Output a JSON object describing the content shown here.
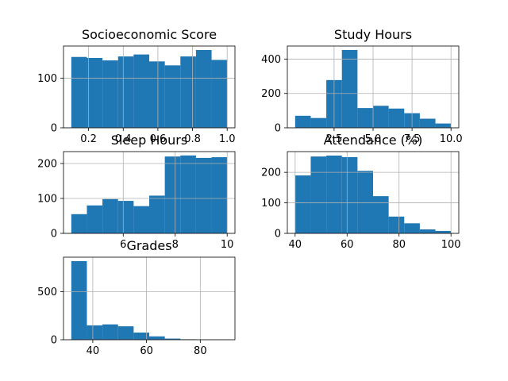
{
  "chart_data": [
    {
      "type": "bar",
      "title": "Socioeconomic Score",
      "bin_edges": [
        0.1,
        0.19,
        0.28,
        0.37,
        0.46,
        0.55,
        0.64,
        0.73,
        0.82,
        0.91,
        1.0
      ],
      "counts": [
        143,
        141,
        136,
        144,
        148,
        134,
        126,
        144,
        157,
        137
      ],
      "xlim": [
        0.055,
        1.045
      ],
      "ylim": [
        0,
        165
      ],
      "xticks": [
        0.2,
        0.4,
        0.6,
        0.8,
        1.0
      ],
      "xtick_labels": [
        "0.2",
        "0.4",
        "0.6",
        "0.8",
        "1.0"
      ],
      "yticks": [
        0,
        100
      ],
      "ytick_labels": [
        "0",
        "100"
      ],
      "color": "#1f77b4",
      "grid": true
    },
    {
      "type": "bar",
      "title": "Study Hours",
      "bin_edges": [
        0.0,
        1.0,
        2.0,
        3.0,
        4.0,
        5.0,
        6.0,
        7.0,
        8.0,
        9.0,
        10.0
      ],
      "counts": [
        70,
        57,
        278,
        453,
        115,
        128,
        112,
        85,
        53,
        25
      ],
      "xlim": [
        -0.5,
        10.5
      ],
      "ylim": [
        0,
        476
      ],
      "xticks": [
        2.5,
        5.0,
        7.5,
        10.0
      ],
      "xtick_labels": [
        "2.5",
        "5.0",
        "7.5",
        "10.0"
      ],
      "yticks": [
        0,
        200,
        400
      ],
      "ytick_labels": [
        "0",
        "200",
        "400"
      ],
      "color": "#1f77b4",
      "grid": true
    },
    {
      "type": "bar",
      "title": "Sleep Hours",
      "bin_edges": [
        4.0,
        4.6,
        5.2,
        5.8,
        6.4,
        7.0,
        7.6,
        8.2,
        8.8,
        9.4,
        10.0
      ],
      "counts": [
        55,
        80,
        98,
        93,
        78,
        108,
        220,
        223,
        216,
        218
      ],
      "xlim": [
        3.7,
        10.3
      ],
      "ylim": [
        0,
        234
      ],
      "xticks": [
        6,
        8,
        10
      ],
      "xtick_labels": [
        "6",
        "8",
        "10"
      ],
      "yticks": [
        0,
        100,
        200
      ],
      "ytick_labels": [
        "0",
        "100",
        "200"
      ],
      "color": "#1f77b4",
      "grid": true
    },
    {
      "type": "bar",
      "title": "Attendance (%)",
      "bin_edges": [
        40,
        46,
        52,
        58,
        64,
        70,
        76,
        82,
        88,
        94,
        100
      ],
      "counts": [
        190,
        252,
        255,
        250,
        205,
        122,
        55,
        33,
        13,
        8
      ],
      "xlim": [
        37,
        103
      ],
      "ylim": [
        0,
        268
      ],
      "xticks": [
        40,
        60,
        80,
        100
      ],
      "xtick_labels": [
        "40",
        "60",
        "80",
        "100"
      ],
      "yticks": [
        0,
        100,
        200
      ],
      "ytick_labels": [
        "0",
        "100",
        "200"
      ],
      "color": "#1f77b4",
      "grid": true
    },
    {
      "type": "bar",
      "title": "Grades",
      "bin_edges": [
        32,
        37.8,
        43.6,
        49.4,
        55.2,
        61,
        66.8,
        72.6,
        78.4,
        84.2,
        90
      ],
      "counts": [
        820,
        150,
        160,
        140,
        75,
        35,
        12,
        5,
        2,
        1
      ],
      "xlim": [
        29.1,
        92.9
      ],
      "ylim": [
        0,
        861
      ],
      "xticks": [
        40,
        60,
        80
      ],
      "xtick_labels": [
        "40",
        "60",
        "80"
      ],
      "yticks": [
        0,
        500
      ],
      "ytick_labels": [
        "0",
        "500"
      ],
      "color": "#1f77b4",
      "grid": true
    }
  ]
}
